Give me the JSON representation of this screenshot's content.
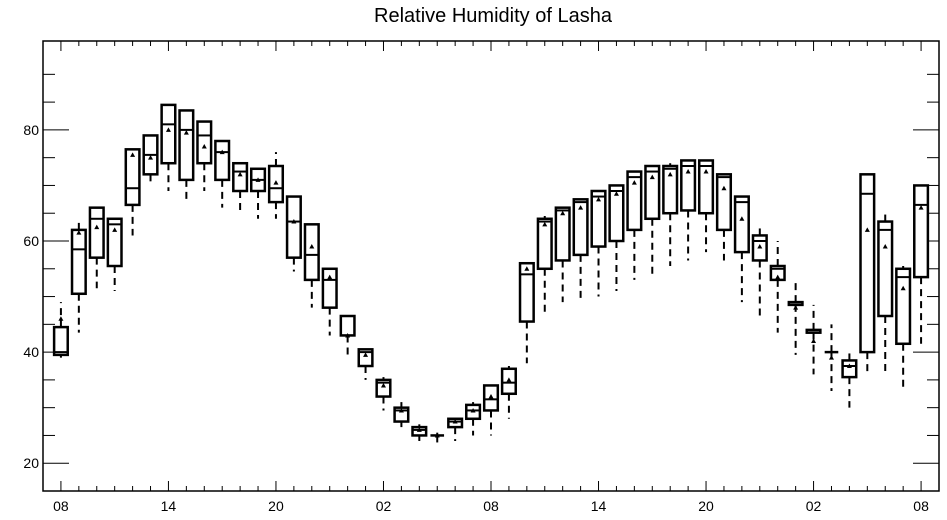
{
  "chart_data": {
    "type": "box",
    "title": "Relative Humidity of Lasha",
    "xlabel": "",
    "ylabel": "",
    "ylim": [
      15,
      96
    ],
    "yticks": [
      20,
      40,
      60,
      80
    ],
    "xticks": [
      {
        "pos": 0,
        "label": "08"
      },
      {
        "pos": 6,
        "label": "14"
      },
      {
        "pos": 12,
        "label": "20"
      },
      {
        "pos": 18,
        "label": "02"
      },
      {
        "pos": 24,
        "label": "08"
      },
      {
        "pos": 30,
        "label": "14"
      },
      {
        "pos": 36,
        "label": "20"
      },
      {
        "pos": 42,
        "label": "02"
      },
      {
        "pos": 48,
        "label": "08"
      }
    ],
    "xlim": [
      -1,
      49
    ],
    "grid": false,
    "boxes": [
      {
        "x": 0,
        "min": 39,
        "q1": 39.5,
        "median": 40,
        "q3": 44.5,
        "max": 49,
        "mean": 46
      },
      {
        "x": 1,
        "min": 43.5,
        "q1": 50.5,
        "median": 58.5,
        "q3": 62,
        "max": 63.5,
        "mean": 61.5
      },
      {
        "x": 2,
        "min": 51.5,
        "q1": 57,
        "median": 64,
        "q3": 66,
        "max": 66,
        "mean": 62.5
      },
      {
        "x": 3,
        "min": 51,
        "q1": 55.5,
        "median": 63,
        "q3": 64,
        "max": 64,
        "mean": 62
      },
      {
        "x": 4,
        "min": 61,
        "q1": 66.5,
        "median": 69.5,
        "q3": 76.5,
        "max": 76.5,
        "mean": 75.5
      },
      {
        "x": 5,
        "min": 70.5,
        "q1": 72,
        "median": 75.5,
        "q3": 79,
        "max": 79,
        "mean": 75
      },
      {
        "x": 6,
        "min": 69,
        "q1": 74,
        "median": 81,
        "q3": 84.5,
        "max": 84.5,
        "mean": 80
      },
      {
        "x": 7,
        "min": 67.5,
        "q1": 71,
        "median": 80,
        "q3": 83.5,
        "max": 83.5,
        "mean": 79.5
      },
      {
        "x": 8,
        "min": 69,
        "q1": 74,
        "median": 79,
        "q3": 81.5,
        "max": 81.5,
        "mean": 77
      },
      {
        "x": 9,
        "min": 66,
        "q1": 71,
        "median": 76,
        "q3": 78,
        "max": 78,
        "mean": 76
      },
      {
        "x": 10,
        "min": 65,
        "q1": 69,
        "median": 72.5,
        "q3": 74,
        "max": 74,
        "mean": 72
      },
      {
        "x": 11,
        "min": 64,
        "q1": 69,
        "median": 71,
        "q3": 73,
        "max": 73,
        "mean": 71
      },
      {
        "x": 12,
        "min": 64,
        "q1": 67,
        "median": 69.5,
        "q3": 73.5,
        "max": 76,
        "mean": 70.5
      },
      {
        "x": 13,
        "min": 54.5,
        "q1": 57,
        "median": 63.5,
        "q3": 68,
        "max": 68,
        "mean": 63.5
      },
      {
        "x": 14,
        "min": 48,
        "q1": 53,
        "median": 57.5,
        "q3": 63,
        "max": 63,
        "mean": 59
      },
      {
        "x": 15,
        "min": 43,
        "q1": 48,
        "median": 53,
        "q3": 55,
        "max": 55,
        "mean": 53.5
      },
      {
        "x": 16,
        "min": 39,
        "q1": 43,
        "median": 43,
        "q3": 46.5,
        "max": 46.5,
        "mean": 43
      },
      {
        "x": 17,
        "min": 35,
        "q1": 37.5,
        "median": 40,
        "q3": 40.5,
        "max": 40.5,
        "mean": 39.5
      },
      {
        "x": 18,
        "min": 29.5,
        "q1": 32,
        "median": 34.5,
        "q3": 35,
        "max": 35.5,
        "mean": 34
      },
      {
        "x": 19,
        "min": 26.5,
        "q1": 27.5,
        "median": 29.5,
        "q3": 30,
        "max": 31,
        "mean": 29.5
      },
      {
        "x": 20,
        "min": 24,
        "q1": 25,
        "median": 26,
        "q3": 26.5,
        "max": 27,
        "mean": 26
      },
      {
        "x": 21,
        "min": 23.5,
        "q1": 25,
        "median": 25,
        "q3": 25,
        "max": 25.5,
        "mean": 25
      },
      {
        "x": 22,
        "min": 24,
        "q1": 26.5,
        "median": 27.5,
        "q3": 28,
        "max": 28,
        "mean": 27.5
      },
      {
        "x": 23,
        "min": 25,
        "q1": 28,
        "median": 29.5,
        "q3": 30.5,
        "max": 31,
        "mean": 29.5
      },
      {
        "x": 24,
        "min": 25,
        "q1": 29.5,
        "median": 31.5,
        "q3": 34,
        "max": 34,
        "mean": 32
      },
      {
        "x": 25,
        "min": 28,
        "q1": 32.5,
        "median": 34.5,
        "q3": 37,
        "max": 37.5,
        "mean": 35
      },
      {
        "x": 26,
        "min": 38,
        "q1": 45.5,
        "median": 54,
        "q3": 56,
        "max": 56,
        "mean": 55
      },
      {
        "x": 27,
        "min": 46.5,
        "q1": 55,
        "median": 63.5,
        "q3": 64,
        "max": 64.5,
        "mean": 63
      },
      {
        "x": 28,
        "min": 49,
        "q1": 56.5,
        "median": 65.5,
        "q3": 66,
        "max": 66,
        "mean": 65
      },
      {
        "x": 29,
        "min": 49,
        "q1": 57.5,
        "median": 67,
        "q3": 67.5,
        "max": 67.5,
        "mean": 66
      },
      {
        "x": 30,
        "min": 50,
        "q1": 59,
        "median": 68,
        "q3": 69,
        "max": 69,
        "mean": 67.5
      },
      {
        "x": 31,
        "min": 51,
        "q1": 60,
        "median": 69,
        "q3": 70,
        "max": 70,
        "mean": 68.5
      },
      {
        "x": 32,
        "min": 53,
        "q1": 62,
        "median": 71.5,
        "q3": 72.5,
        "max": 72.5,
        "mean": 70.5
      },
      {
        "x": 33,
        "min": 54,
        "q1": 64,
        "median": 72.5,
        "q3": 73.5,
        "max": 73.5,
        "mean": 71.5
      },
      {
        "x": 34,
        "min": 55.5,
        "q1": 65,
        "median": 73,
        "q3": 73.5,
        "max": 74,
        "mean": 72
      },
      {
        "x": 35,
        "min": 56.5,
        "q1": 65.5,
        "median": 73.5,
        "q3": 74.5,
        "max": 74.5,
        "mean": 72.5
      },
      {
        "x": 36,
        "min": 58,
        "q1": 65,
        "median": 73.5,
        "q3": 74.5,
        "max": 74.5,
        "mean": 72.5
      },
      {
        "x": 37,
        "min": 56.5,
        "q1": 62,
        "median": 71.5,
        "q3": 72,
        "max": 72,
        "mean": 69.5
      },
      {
        "x": 38,
        "min": 49,
        "q1": 58,
        "median": 67,
        "q3": 68,
        "max": 68,
        "mean": 64
      },
      {
        "x": 39,
        "min": 46.5,
        "q1": 56.5,
        "median": 60,
        "q3": 61,
        "max": 63,
        "mean": 59
      },
      {
        "x": 40,
        "min": 43.5,
        "q1": 53,
        "median": 55,
        "q3": 55.5,
        "max": 60,
        "mean": 53.5
      },
      {
        "x": 41,
        "min": 39.5,
        "q1": 48.5,
        "median": 48.5,
        "q3": 49,
        "max": 52.5,
        "mean": 48
      },
      {
        "x": 42,
        "min": 36,
        "q1": 43.5,
        "median": 43.5,
        "q3": 44,
        "max": 48.5,
        "mean": 42
      },
      {
        "x": 43,
        "min": 33,
        "q1": 40,
        "median": 40,
        "q3": 40,
        "max": 45,
        "mean": 39
      },
      {
        "x": 44,
        "min": 30,
        "q1": 35.5,
        "median": 37.5,
        "q3": 38.5,
        "max": 40,
        "mean": 37.5
      },
      {
        "x": 45,
        "min": 36,
        "q1": 40,
        "median": 68.5,
        "q3": 72,
        "max": 72,
        "mean": 62
      },
      {
        "x": 46,
        "min": 36,
        "q1": 46.5,
        "median": 62,
        "q3": 63.5,
        "max": 65,
        "mean": 59
      },
      {
        "x": 47,
        "min": 33.5,
        "q1": 41.5,
        "median": 53.5,
        "q3": 55,
        "max": 55.5,
        "mean": 51.5
      },
      {
        "x": 48,
        "min": 41.5,
        "q1": 53.5,
        "median": 66.5,
        "q3": 70,
        "max": 70,
        "mean": 66
      }
    ]
  }
}
